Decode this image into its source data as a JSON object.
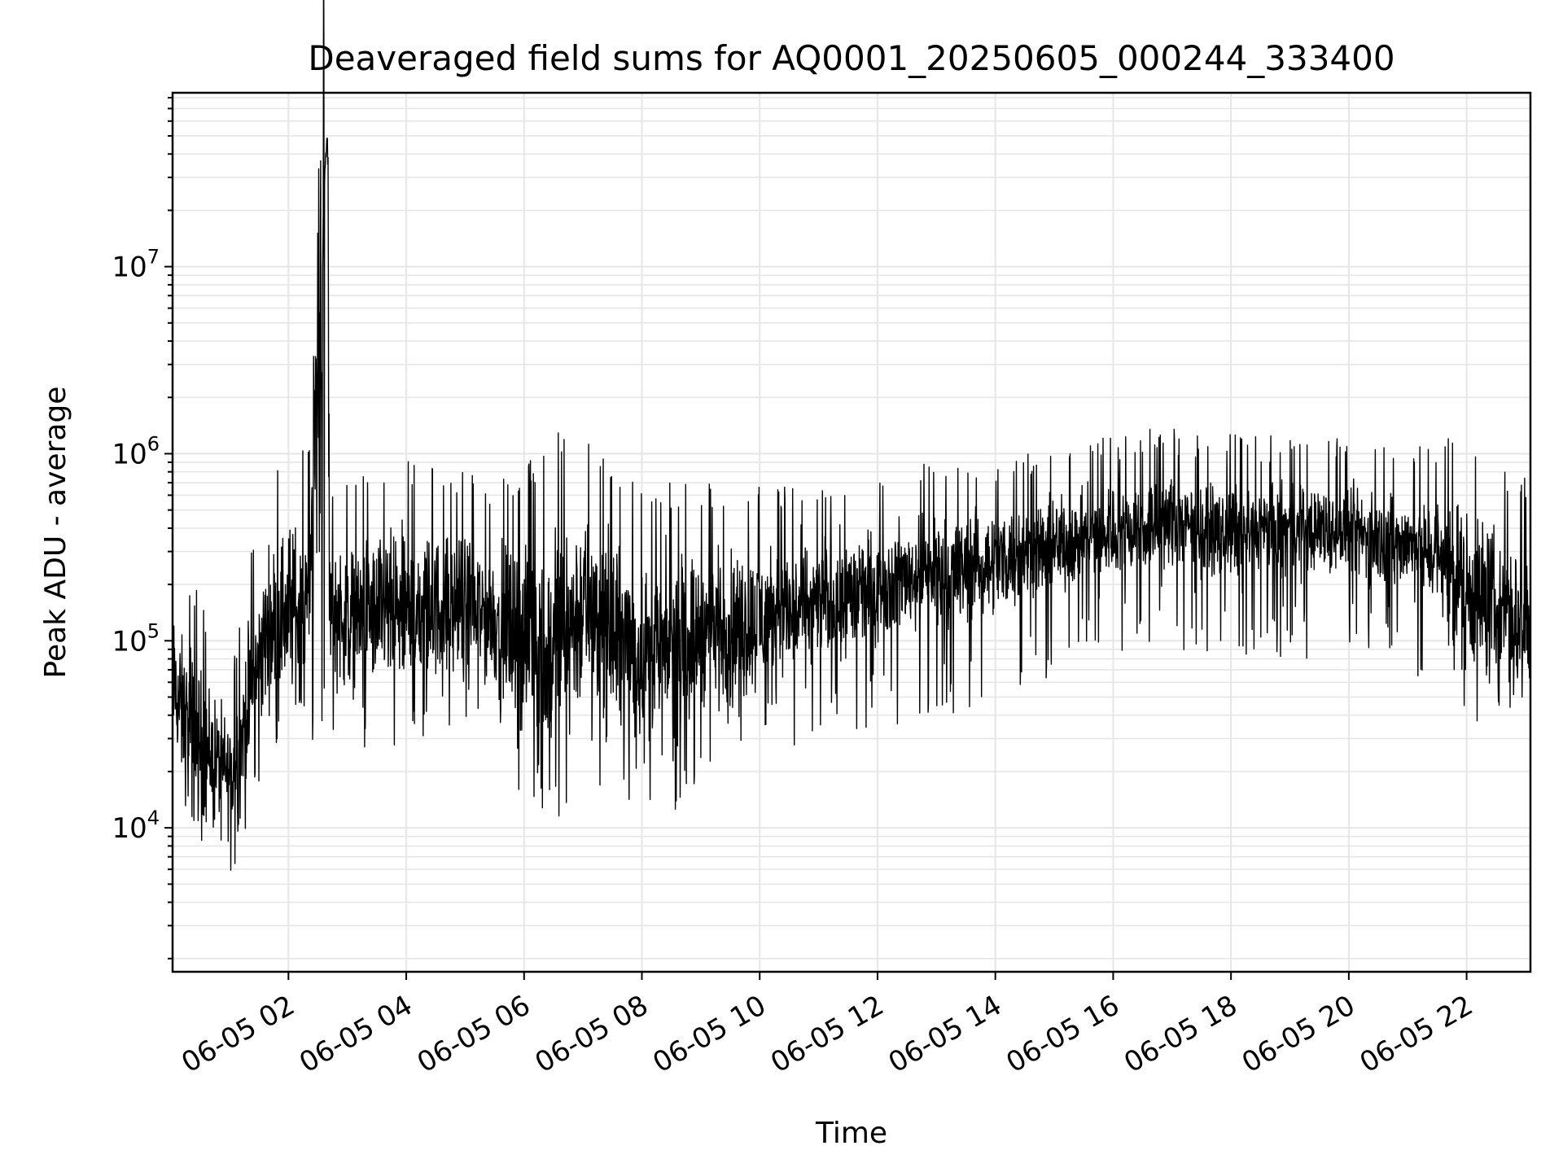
{
  "chart_data": {
    "type": "line",
    "title": "Deaveraged field sums for AQ0001_20250605_000244_333400",
    "xlabel": "Time",
    "ylabel": "Peak ADU - average",
    "y_scale": "log",
    "ylim": [
      1700,
      85000000
    ],
    "xlim": [
      "06-05 00:02",
      "06-05 23:05"
    ],
    "x_tick_labels": [
      "06-05 02",
      "06-05 04",
      "06-05 06",
      "06-05 08",
      "06-05 10",
      "06-05 12",
      "06-05 14",
      "06-05 16",
      "06-05 18",
      "06-05 20",
      "06-05 22"
    ],
    "y_tick_labels": [
      {
        "base": "10",
        "exp": "4",
        "value": 10000
      },
      {
        "base": "10",
        "exp": "5",
        "value": 100000
      },
      {
        "base": "10",
        "exp": "6",
        "value": 1000000
      },
      {
        "base": "10",
        "exp": "7",
        "value": 10000000
      }
    ],
    "grid": true,
    "line_color": "#000000",
    "series": [
      {
        "x": [
          "06-05 00:02",
          "06-05 00:20",
          "06-05 00:40",
          "06-05 00:55",
          "06-05 01:05",
          "06-05 01:20",
          "06-05 01:40",
          "06-05 02:00",
          "06-05 02:20",
          "06-05 02:38",
          "06-05 02:40",
          "06-05 02:42",
          "06-05 03:00",
          "06-05 03:30",
          "06-05 04:00",
          "06-05 04:30",
          "06-05 05:00",
          "06-05 05:30",
          "06-05 06:00",
          "06-05 06:30",
          "06-05 07:00",
          "06-05 07:30",
          "06-05 08:00",
          "06-05 08:30",
          "06-05 09:00",
          "06-05 09:30",
          "06-05 10:00",
          "06-05 10:30",
          "06-05 11:00",
          "06-05 11:30",
          "06-05 12:00",
          "06-05 12:30",
          "06-05 13:00",
          "06-05 13:30",
          "06-05 14:00",
          "06-05 14:30",
          "06-05 15:00",
          "06-05 15:30",
          "06-05 16:00",
          "06-05 16:30",
          "06-05 17:00",
          "06-05 17:30",
          "06-05 18:00",
          "06-05 18:30",
          "06-05 19:00",
          "06-05 19:30",
          "06-05 20:00",
          "06-05 20:30",
          "06-05 21:00",
          "06-05 21:30",
          "06-05 22:00",
          "06-05 22:30",
          "06-05 23:05"
        ],
        "y": [
          60000,
          30000,
          25000,
          20000,
          18000,
          50000,
          120000,
          150000,
          140000,
          40000000,
          45000000,
          150000,
          130000,
          140000,
          140000,
          150000,
          150000,
          130000,
          100000,
          90000,
          150000,
          100000,
          90000,
          80000,
          120000,
          110000,
          130000,
          140000,
          160000,
          170000,
          200000,
          220000,
          230000,
          240000,
          270000,
          300000,
          320000,
          360000,
          380000,
          400000,
          420000,
          400000,
          380000,
          380000,
          390000,
          400000,
          380000,
          350000,
          330000,
          300000,
          200000,
          150000,
          120000
        ],
        "envelope_low": [
          30000,
          20000,
          15000,
          10000,
          8000,
          25000,
          50000,
          60000,
          60000,
          60000,
          60000,
          60000,
          60000,
          60000,
          60000,
          60000,
          60000,
          50000,
          30000,
          20000,
          40000,
          30000,
          30000,
          25000,
          40000,
          40000,
          50000,
          60000,
          60000,
          70000,
          70000,
          80000,
          80000,
          90000,
          100000,
          120000,
          150000,
          170000,
          180000,
          200000,
          200000,
          200000,
          180000,
          180000,
          180000,
          180000,
          180000,
          170000,
          150000,
          120000,
          80000,
          70000,
          70000
        ],
        "envelope_high": [
          200000,
          150000,
          100000,
          60000,
          60000,
          200000,
          500000,
          800000,
          800000,
          800000,
          600000,
          600000,
          500000,
          600000,
          700000,
          600000,
          600000,
          500000,
          600000,
          900000,
          1000000,
          700000,
          500000,
          500000,
          500000,
          500000,
          500000,
          500000,
          500000,
          600000,
          600000,
          600000,
          700000,
          700000,
          700000,
          700000,
          800000,
          800000,
          900000,
          1000000,
          1000000,
          900000,
          900000,
          900000,
          900000,
          900000,
          900000,
          800000,
          800000,
          800000,
          1000000,
          700000,
          500000
        ]
      }
    ]
  }
}
